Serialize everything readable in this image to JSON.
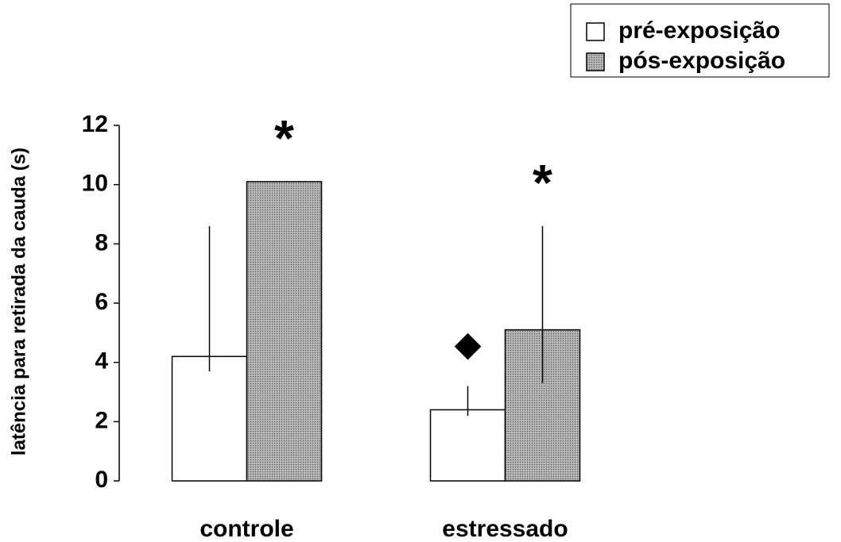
{
  "chart_data": {
    "type": "bar",
    "y_label": "latência para retirada da cauda (s)",
    "categories": [
      "controle",
      "estressado"
    ],
    "series": [
      {
        "name": "pré-exposição",
        "color": "#ffffff",
        "values": [
          4.2,
          2.4
        ],
        "err_lower": [
          0.5,
          0.2
        ],
        "err_upper": [
          4.4,
          0.8
        ]
      },
      {
        "name": "pós-exposição",
        "color": "#a8a8a8",
        "pattern": "dots",
        "values": [
          10.1,
          5.1
        ],
        "err_lower": [
          null,
          1.8
        ],
        "err_upper": [
          null,
          3.5
        ]
      }
    ],
    "annotations": [
      {
        "text": "*",
        "series": 1,
        "category": 0
      },
      {
        "text": "*",
        "series": 1,
        "category": 1
      },
      {
        "text": "◆",
        "series": 0,
        "category": 1
      }
    ],
    "ylim": [
      0,
      12
    ],
    "yticks": [
      0,
      2,
      4,
      6,
      8,
      10,
      12
    ],
    "legend": "top-right"
  }
}
